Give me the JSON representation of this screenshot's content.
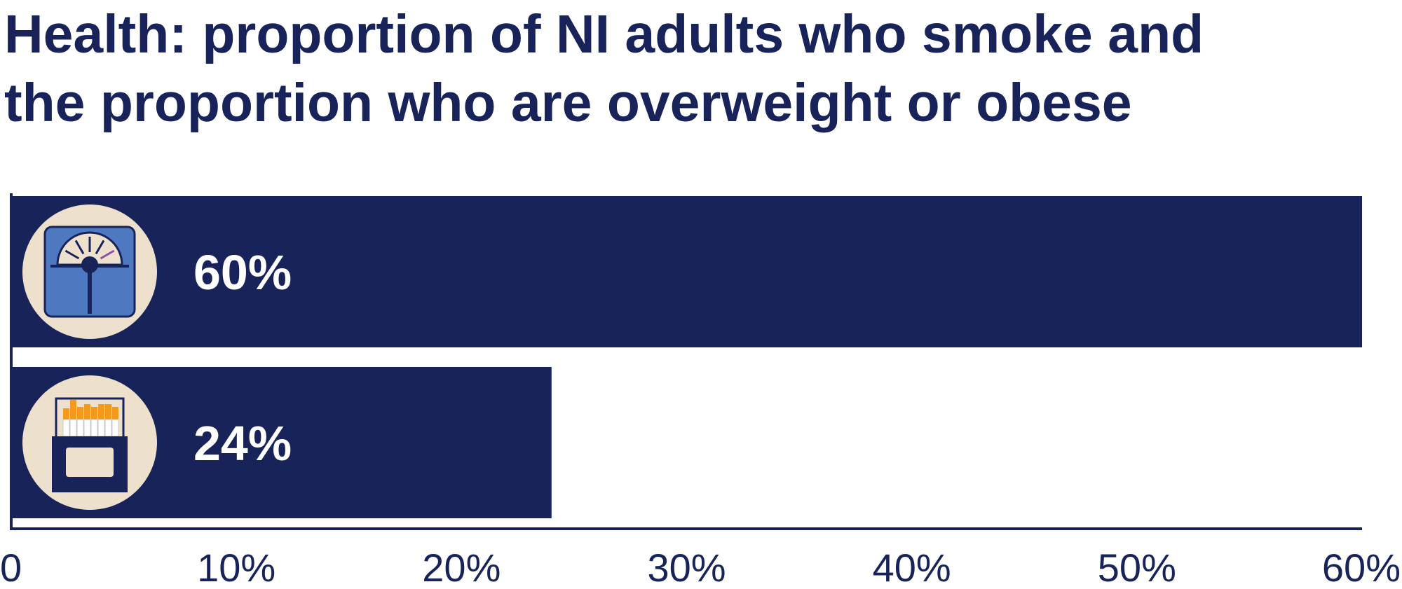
{
  "colors": {
    "bar": "#182459",
    "axis": "#182459",
    "icon_circle": "#ede1cd",
    "scale_body": "#4e79c0",
    "cigarette_tip": "#f39a1c"
  },
  "chart_data": {
    "type": "bar",
    "orientation": "horizontal",
    "title_lines": [
      "Health: proportion of NI adults who smoke and",
      "the proportion who are overweight or obese"
    ],
    "xlabel": "",
    "ylabel": "",
    "xlim": [
      0,
      60
    ],
    "x_ticks": [
      "0",
      "10%",
      "20%",
      "30%",
      "40%",
      "50%",
      "60%"
    ],
    "legend": "none",
    "grid": false,
    "bars": [
      {
        "icon": "weighing-scale-icon",
        "value": 60,
        "label": "60%"
      },
      {
        "icon": "cigarette-pack-icon",
        "value": 24,
        "label": "24%"
      }
    ]
  }
}
